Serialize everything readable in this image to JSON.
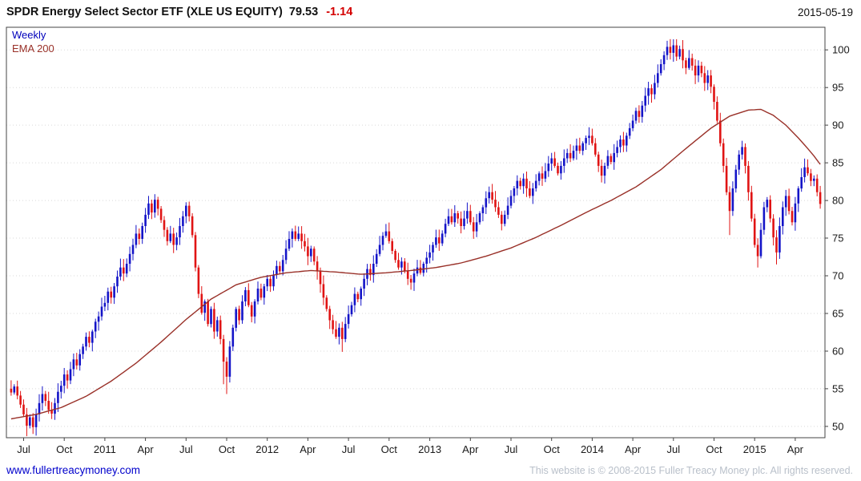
{
  "header": {
    "title": "SPDR Energy Select Sector ETF (XLE US EQUITY)",
    "last_price": "79.53",
    "change": "-1.14",
    "date": "2015-05-19"
  },
  "footer": {
    "site_link": "www.fullertreacymoney.com",
    "copyright": "This website is © 2008-2015 Fuller Treacy Money plc. All rights reserved."
  },
  "colors": {
    "title_text": "#000000",
    "change_negative": "#d40000",
    "link_blue": "#0000cc",
    "copyright_gray": "#b9c0ca"
  },
  "chart_data": {
    "type": "candlestick",
    "title": "SPDR Energy Select Sector ETF (XLE US EQUITY)",
    "interval": "Weekly",
    "overlay": "EMA 200",
    "as_of": "2015-05-19",
    "last_close": 79.53,
    "change": -1.14,
    "legend": [
      {
        "label": "Weekly",
        "color": "#0000bb"
      },
      {
        "label": "EMA 200",
        "color": "#993028"
      }
    ],
    "colors": {
      "up": "#1414c8",
      "down": "#e01414",
      "ema": "#993028",
      "grid": "#d9d9d9",
      "axis": "#444444",
      "tick_text": "#1a1a1a"
    },
    "grid": "horizontal-dotted",
    "y_axis": {
      "side": "right",
      "ticks": [
        50,
        55,
        60,
        65,
        70,
        75,
        80,
        85,
        90,
        95,
        100
      ],
      "range": [
        48.5,
        103
      ]
    },
    "x_axis": {
      "unit": "week-index",
      "ticks": [
        {
          "label": "Jul",
          "week": 4
        },
        {
          "label": "Oct",
          "week": 17
        },
        {
          "label": "2011",
          "week": 30
        },
        {
          "label": "Apr",
          "week": 43
        },
        {
          "label": "Jul",
          "week": 56
        },
        {
          "label": "Oct",
          "week": 69
        },
        {
          "label": "2012",
          "week": 82
        },
        {
          "label": "Apr",
          "week": 95
        },
        {
          "label": "Jul",
          "week": 108
        },
        {
          "label": "Oct",
          "week": 121
        },
        {
          "label": "2013",
          "week": 134
        },
        {
          "label": "Apr",
          "week": 147
        },
        {
          "label": "Jul",
          "week": 160
        },
        {
          "label": "Oct",
          "week": 173
        },
        {
          "label": "2014",
          "week": 186
        },
        {
          "label": "Apr",
          "week": 199
        },
        {
          "label": "Jul",
          "week": 212
        },
        {
          "label": "Oct",
          "week": 225
        },
        {
          "label": "2015",
          "week": 238
        },
        {
          "label": "Apr",
          "week": 251
        }
      ]
    },
    "closes": [
      54.5,
      55.3,
      54.1,
      52.9,
      51.6,
      50.1,
      51.2,
      49.9,
      51.6,
      53.1,
      54.3,
      53.4,
      52.2,
      51.7,
      53.1,
      54.6,
      55.4,
      56.9,
      56.1,
      57.6,
      58.9,
      58.1,
      59.6,
      60.6,
      61.9,
      61.1,
      62.6,
      63.9,
      64.6,
      65.9,
      66.4,
      67.9,
      67.1,
      68.6,
      69.9,
      71.1,
      70.3,
      71.6,
      72.9,
      74.1,
      75.6,
      74.9,
      76.6,
      78.1,
      79.6,
      78.4,
      80.1,
      78.9,
      77.4,
      76.1,
      74.6,
      75.6,
      74.1,
      75.1,
      76.6,
      77.9,
      79.3,
      77.9,
      75.4,
      71.1,
      67.6,
      65.1,
      66.6,
      63.6,
      65.6,
      62.6,
      64.1,
      61.6,
      58.6,
      56.6,
      60.6,
      63.1,
      65.6,
      64.1,
      66.6,
      68.1,
      66.1,
      64.6,
      66.6,
      68.3,
      67.1,
      68.6,
      69.6,
      68.6,
      70.1,
      71.3,
      70.6,
      72.1,
      73.6,
      74.9,
      75.9,
      74.9,
      75.6,
      74.6,
      73.9,
      72.6,
      73.6,
      71.9,
      70.6,
      68.9,
      67.1,
      65.6,
      64.1,
      62.9,
      61.9,
      63.1,
      61.6,
      63.6,
      64.9,
      66.1,
      67.6,
      66.9,
      68.3,
      69.6,
      70.9,
      70.1,
      71.6,
      72.9,
      74.1,
      75.3,
      75.9,
      74.6,
      73.3,
      72.1,
      71.1,
      71.9,
      70.6,
      69.6,
      69.1,
      70.3,
      71.1,
      70.4,
      71.6,
      72.4,
      73.1,
      74.1,
      75.1,
      74.3,
      75.6,
      76.9,
      77.9,
      77.1,
      78.3,
      77.6,
      76.6,
      77.6,
      78.6,
      77.1,
      75.9,
      77.1,
      78.3,
      79.1,
      80.3,
      81.1,
      80.1,
      79.1,
      78.1,
      76.9,
      78.1,
      79.3,
      80.6,
      81.6,
      82.6,
      81.9,
      82.9,
      81.6,
      80.6,
      81.6,
      82.6,
      83.6,
      82.9,
      83.9,
      84.9,
      85.6,
      84.6,
      83.6,
      84.6,
      85.6,
      86.3,
      85.6,
      86.6,
      87.3,
      86.6,
      87.6,
      88.3,
      88.6,
      87.6,
      86.1,
      84.6,
      83.3,
      84.6,
      85.9,
      85.1,
      86.3,
      87.1,
      88.1,
      87.3,
      88.6,
      89.6,
      90.6,
      91.9,
      91.1,
      92.6,
      93.9,
      94.9,
      94.1,
      95.6,
      96.9,
      98.1,
      99.3,
      100.4,
      99.6,
      100.6,
      99.1,
      100.1,
      98.6,
      97.6,
      98.9,
      97.9,
      96.6,
      97.9,
      96.9,
      95.6,
      96.6,
      95.1,
      93.1,
      90.6,
      87.6,
      84.6,
      81.1,
      78.6,
      81.6,
      84.1,
      86.1,
      87.1,
      84.6,
      81.1,
      77.6,
      74.1,
      72.6,
      76.1,
      79.1,
      80.1,
      77.6,
      75.1,
      73.1,
      76.6,
      79.1,
      80.6,
      78.6,
      77.1,
      79.6,
      81.6,
      83.1,
      84.4,
      83.6,
      82.6,
      82.9,
      81.1,
      79.53
    ],
    "ema200_anchors": [
      [
        0,
        51.0
      ],
      [
        8,
        51.6
      ],
      [
        16,
        52.5
      ],
      [
        24,
        54.0
      ],
      [
        32,
        56.0
      ],
      [
        40,
        58.4
      ],
      [
        48,
        61.2
      ],
      [
        56,
        64.2
      ],
      [
        64,
        66.9
      ],
      [
        72,
        68.8
      ],
      [
        80,
        69.8
      ],
      [
        88,
        70.4
      ],
      [
        96,
        70.7
      ],
      [
        104,
        70.5
      ],
      [
        112,
        70.2
      ],
      [
        120,
        70.4
      ],
      [
        128,
        70.7
      ],
      [
        136,
        71.1
      ],
      [
        144,
        71.7
      ],
      [
        152,
        72.6
      ],
      [
        160,
        73.7
      ],
      [
        168,
        75.1
      ],
      [
        176,
        76.7
      ],
      [
        184,
        78.4
      ],
      [
        192,
        80.0
      ],
      [
        200,
        81.8
      ],
      [
        208,
        84.1
      ],
      [
        216,
        86.9
      ],
      [
        224,
        89.6
      ],
      [
        230,
        91.2
      ],
      [
        236,
        92.0
      ],
      [
        240,
        92.1
      ],
      [
        244,
        91.3
      ],
      [
        248,
        90.0
      ],
      [
        252,
        88.3
      ],
      [
        255,
        86.9
      ],
      [
        257,
        85.9
      ],
      [
        259,
        84.8
      ]
    ],
    "wick_overrides": {
      "5": {
        "low": 48.7
      },
      "7": {
        "low": 49.0
      },
      "68": {
        "low": 55.6
      },
      "69": {
        "low": 54.3
      },
      "106": {
        "low": 59.9
      },
      "210": {
        "high": 101.2
      },
      "212": {
        "high": 101.4
      },
      "230": {
        "low": 75.4
      },
      "239": {
        "low": 71.1
      },
      "245": {
        "low": 71.5
      }
    }
  }
}
